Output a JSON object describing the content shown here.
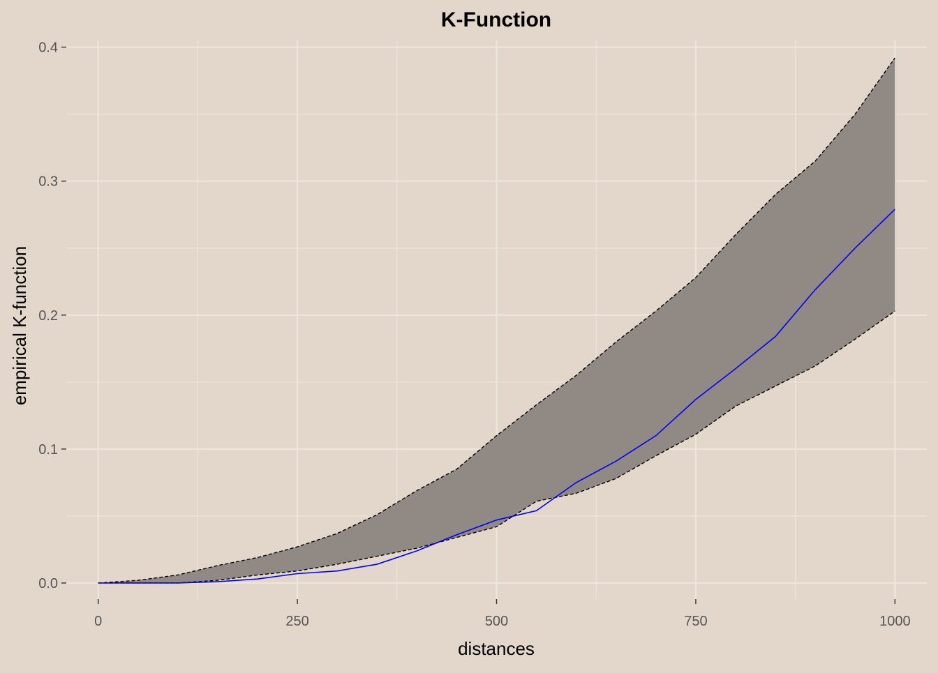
{
  "chart_data": {
    "type": "area",
    "title": "K-Function",
    "xlabel": "distances",
    "ylabel": "empirical K-function",
    "xlim": [
      -40,
      1040
    ],
    "ylim": [
      -0.012,
      0.405
    ],
    "x_ticks": [
      0,
      250,
      500,
      750,
      1000
    ],
    "x_tick_labels": [
      "0",
      "250",
      "500",
      "750",
      "1000"
    ],
    "y_ticks": [
      0.0,
      0.1,
      0.2,
      0.3,
      0.4
    ],
    "y_tick_labels": [
      "0.0",
      "0.1",
      "0.2",
      "0.3",
      "0.4"
    ],
    "x_minor_ticks": [
      125,
      375,
      625,
      875
    ],
    "y_minor_ticks": [
      0.05,
      0.15,
      0.25,
      0.35
    ],
    "grid": true,
    "x": [
      0,
      50,
      100,
      150,
      200,
      250,
      300,
      350,
      400,
      450,
      500,
      550,
      600,
      650,
      700,
      750,
      800,
      850,
      900,
      950,
      1000
    ],
    "series": [
      {
        "role": "envelope-upper",
        "values": [
          0.0,
          0.002,
          0.006,
          0.013,
          0.019,
          0.027,
          0.037,
          0.051,
          0.069,
          0.085,
          0.11,
          0.133,
          0.155,
          0.18,
          0.203,
          0.228,
          0.26,
          0.29,
          0.315,
          0.35,
          0.392
        ]
      },
      {
        "role": "envelope-lower",
        "values": [
          0.0,
          0.0,
          0.0,
          0.002,
          0.006,
          0.009,
          0.014,
          0.02,
          0.026,
          0.034,
          0.042,
          0.061,
          0.067,
          0.078,
          0.095,
          0.111,
          0.132,
          0.147,
          0.162,
          0.182,
          0.203
        ]
      },
      {
        "role": "observed",
        "values": [
          0.0,
          0.0,
          0.0,
          0.001,
          0.003,
          0.007,
          0.009,
          0.014,
          0.024,
          0.036,
          0.047,
          0.054,
          0.075,
          0.091,
          0.11,
          0.137,
          0.16,
          0.184,
          0.219,
          0.25,
          0.279
        ]
      }
    ],
    "colors": {
      "background": "#E3D6CA",
      "grid": "#EDE6DE",
      "envelope_fill": "#918983",
      "envelope_edge": "#000000",
      "observed_line": "#0000FF"
    }
  }
}
